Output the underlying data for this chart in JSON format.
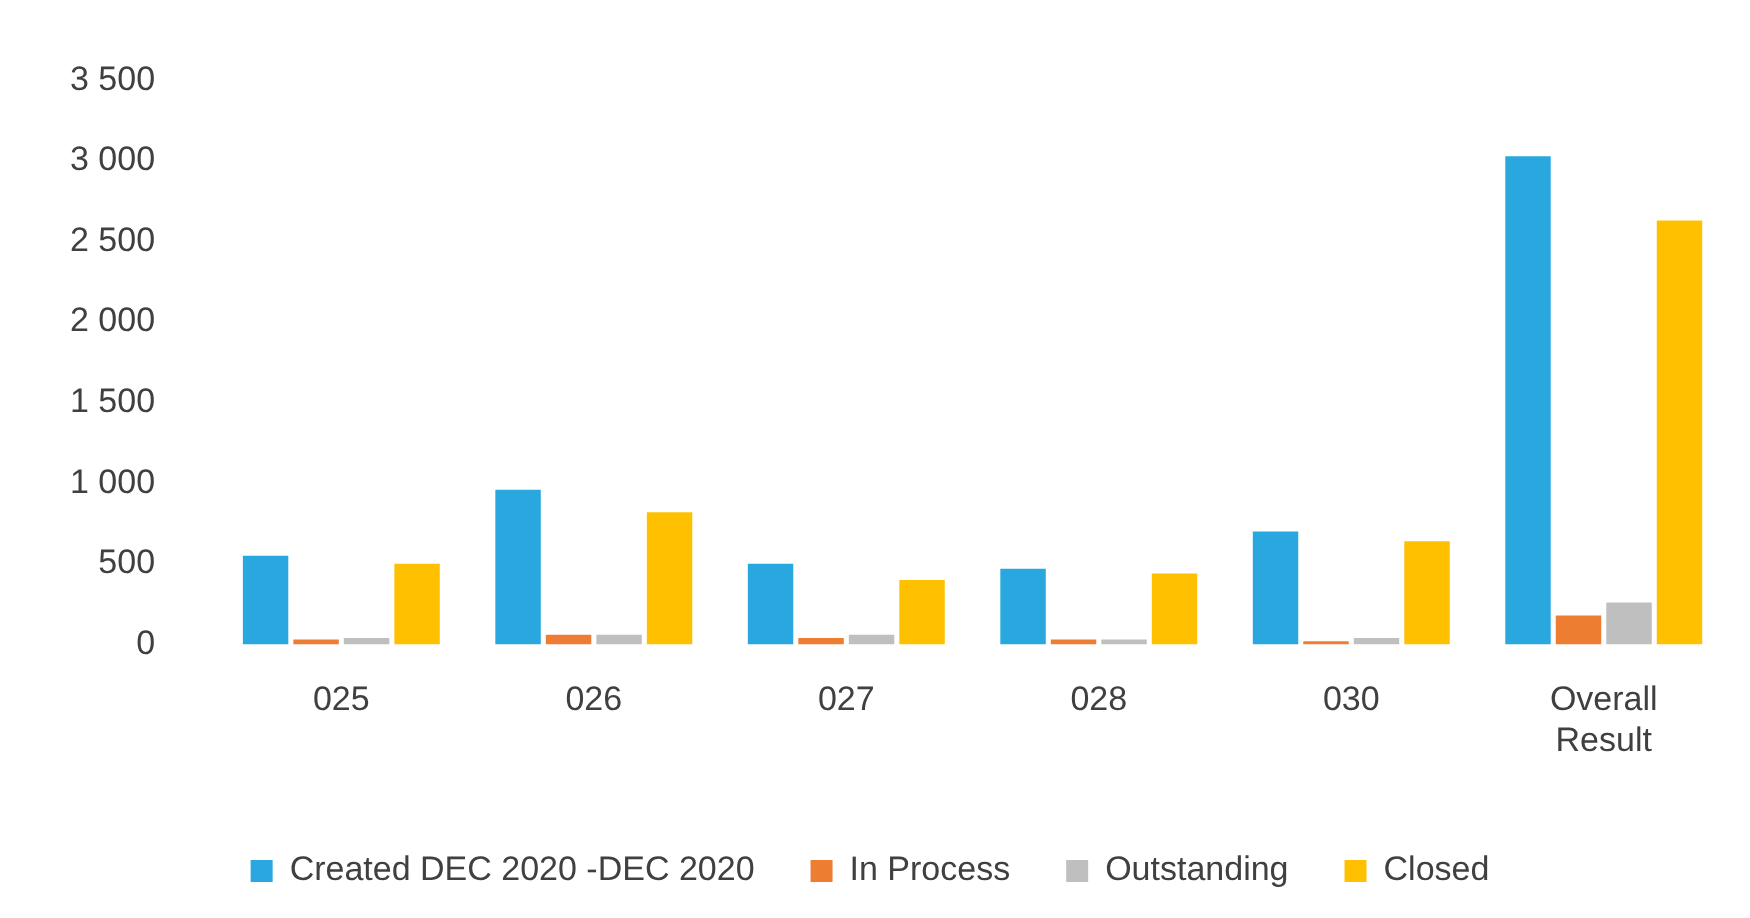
{
  "chart_data": {
    "type": "bar",
    "categories": [
      "025",
      "026",
      "027",
      "028",
      "030",
      "Overall Result"
    ],
    "series": [
      {
        "name": "Created DEC 2020 -DEC 2020",
        "color": "#29a8e0",
        "values": [
          550,
          960,
          500,
          470,
          700,
          3030
        ]
      },
      {
        "name": "In Process",
        "color": "#ed7d31",
        "values": [
          30,
          60,
          40,
          30,
          20,
          180
        ]
      },
      {
        "name": "Outstanding",
        "color": "#bfbfbf",
        "values": [
          40,
          60,
          60,
          30,
          40,
          260
        ]
      },
      {
        "name": "Closed",
        "color": "#ffc000",
        "values": [
          500,
          820,
          400,
          440,
          640,
          2630
        ]
      }
    ],
    "ylim": [
      0,
      3500
    ],
    "yticks": [
      0,
      500,
      {
        "value": 1000,
        "label": "1 000"
      },
      {
        "value": 1500,
        "label": "1 500"
      },
      {
        "value": 2000,
        "label": "2 000"
      },
      {
        "value": 2500,
        "label": "2 500"
      },
      {
        "value": 3000,
        "label": "3 000"
      },
      {
        "value": 3500,
        "label": "3 500"
      }
    ],
    "grid": false,
    "legend": "bottom"
  }
}
